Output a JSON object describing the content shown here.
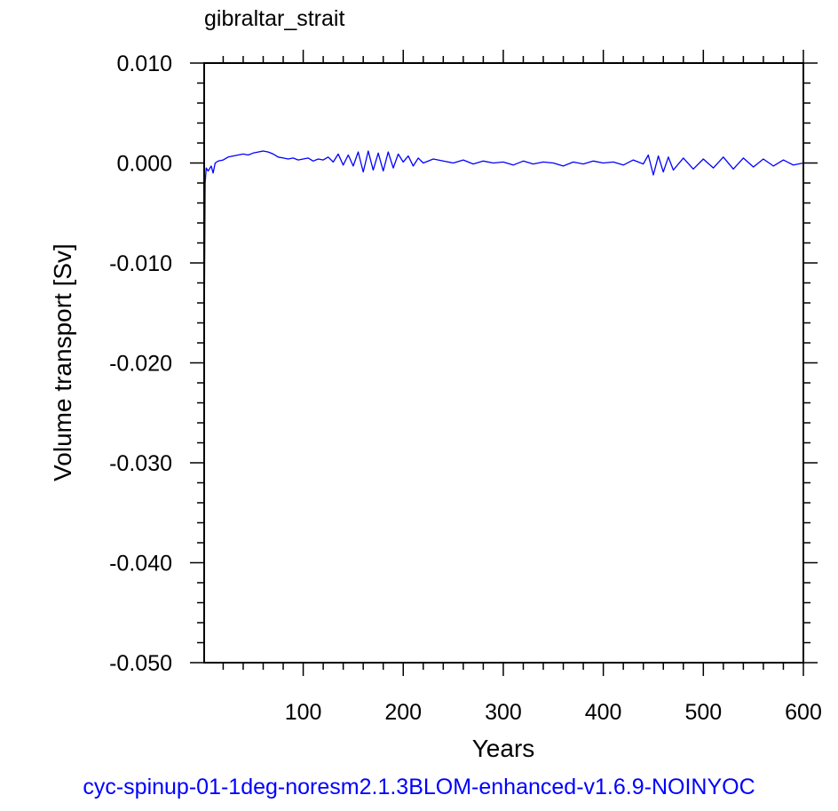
{
  "caption": "cyc-spinup-01-1deg-noresm2.1.3BLOM-enhanced-v1.6.9-NOINYOC",
  "caption_color": "#0000ff",
  "line_color": "#0000ff",
  "chart_data": {
    "type": "line",
    "title": "gibraltar_strait",
    "xlabel": "Years",
    "ylabel": "Volume transport [Sv]",
    "xlim": [
      1,
      600
    ],
    "ylim": [
      -0.05,
      0.01
    ],
    "x_ticks": [
      100,
      200,
      300,
      400,
      500,
      600
    ],
    "x_tick_labels": [
      "100",
      "200",
      "300",
      "400",
      "500",
      "600"
    ],
    "y_ticks": [
      0.01,
      0.0,
      -0.01,
      -0.02,
      -0.03,
      -0.04,
      -0.05
    ],
    "y_tick_labels": [
      "0.010",
      "0.000",
      "-0.010",
      "-0.020",
      "-0.030",
      "-0.040",
      "-0.050"
    ],
    "grid": false,
    "series": [
      {
        "x": [
          1,
          2,
          3,
          5,
          8,
          10,
          12,
          15,
          20,
          25,
          30,
          35,
          40,
          45,
          50,
          55,
          60,
          65,
          70,
          75,
          80,
          85,
          90,
          95,
          100,
          105,
          110,
          115,
          120,
          125,
          130,
          135,
          140,
          145,
          150,
          155,
          160,
          165,
          170,
          175,
          180,
          185,
          190,
          195,
          200,
          205,
          210,
          215,
          220,
          230,
          240,
          250,
          260,
          270,
          280,
          290,
          300,
          310,
          320,
          330,
          340,
          350,
          360,
          370,
          380,
          390,
          400,
          410,
          420,
          430,
          440,
          445,
          450,
          455,
          460,
          465,
          470,
          480,
          490,
          500,
          510,
          520,
          530,
          540,
          550,
          560,
          570,
          580,
          590,
          600
        ],
        "y": [
          -0.018,
          -0.002,
          -0.0005,
          -0.0008,
          -0.0003,
          -0.001,
          0.0,
          0.0002,
          0.0003,
          0.0006,
          0.0007,
          0.0008,
          0.0009,
          0.0008,
          0.001,
          0.0011,
          0.0012,
          0.0011,
          0.0009,
          0.0006,
          0.0005,
          0.0004,
          0.0005,
          0.0003,
          0.0004,
          0.0005,
          0.0002,
          0.0004,
          0.0003,
          0.0006,
          0.0001,
          0.0009,
          -0.0002,
          0.0008,
          -0.0003,
          0.0011,
          -0.0009,
          0.0012,
          -0.0007,
          0.001,
          -0.0008,
          0.0011,
          -0.0005,
          0.0009,
          0.0001,
          0.0007,
          -0.0003,
          0.0005,
          0.0,
          0.0004,
          0.0002,
          0.0,
          0.0003,
          -0.0001,
          0.0002,
          0.0,
          0.0001,
          -0.0002,
          0.0002,
          -0.0001,
          0.0001,
          0.0,
          -0.0003,
          0.0001,
          -0.0001,
          0.0002,
          0.0,
          0.0001,
          -0.0002,
          0.0003,
          -0.0001,
          0.0008,
          -0.0012,
          0.0007,
          -0.0009,
          0.0006,
          -0.0007,
          0.0005,
          -0.0006,
          0.0004,
          -0.0005,
          0.0006,
          -0.0006,
          0.0005,
          -0.0004,
          0.0004,
          -0.0003,
          0.0003,
          -0.0002,
          0.0
        ]
      }
    ]
  }
}
